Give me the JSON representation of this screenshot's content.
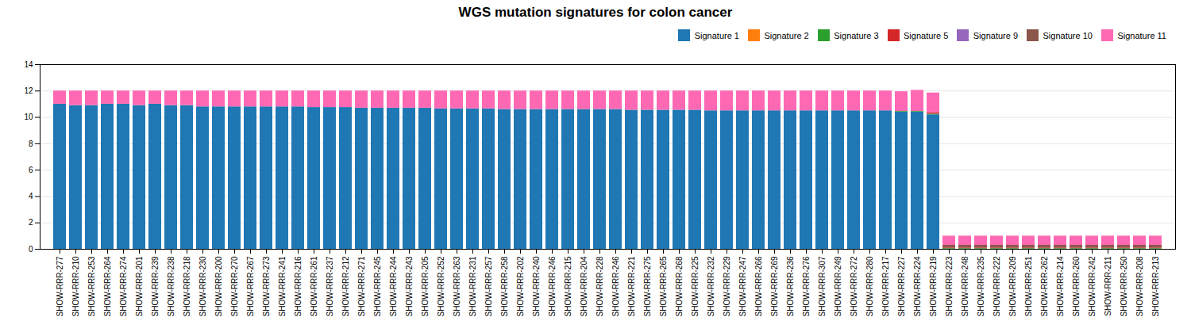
{
  "chart_data": {
    "type": "bar",
    "title": "WGS mutation signatures for colon cancer",
    "stacked": true,
    "categories": [
      "SHOW-RRR-277",
      "SHOW-RRR-210",
      "SHOW-RRR-253",
      "SHOW-RRR-264",
      "SHOW-RRR-274",
      "SHOW-RRR-201",
      "SHOW-RRR-239",
      "SHOW-RRR-238",
      "SHOW-RRR-218",
      "SHOW-RRR-230",
      "SHOW-RRR-200",
      "SHOW-RRR-270",
      "SHOW-RRR-267",
      "SHOW-RRR-273",
      "SHOW-RRR-241",
      "SHOW-RRR-216",
      "SHOW-RRR-261",
      "SHOW-RRR-237",
      "SHOW-RRR-212",
      "SHOW-RRR-271",
      "SHOW-RRR-245",
      "SHOW-RRR-244",
      "SHOW-RRR-243",
      "SHOW-RRR-205",
      "SHOW-RRR-252",
      "SHOW-RRR-263",
      "SHOW-RRR-231",
      "SHOW-RRR-257",
      "SHOW-RRR-258",
      "SHOW-RRR-202",
      "SHOW-RRR-240",
      "SHOW-RRR-246",
      "SHOW-RRR-215",
      "SHOW-RRR-204",
      "SHOW-RRR-228",
      "SHOW-RRR-246",
      "SHOW-RRR-221",
      "SHOW-RRR-275",
      "SHOW-RRR-265",
      "SHOW-RRR-268",
      "SHOW-RRR-225",
      "SHOW-RRR-232",
      "SHOW-RRR-229",
      "SHOW-RRR-247",
      "SHOW-RRR-266",
      "SHOW-RRR-269",
      "SHOW-RRR-236",
      "SHOW-RRR-276",
      "SHOW-RRR-307",
      "SHOW-RRR-249",
      "SHOW-RRR-272",
      "SHOW-RRR-280",
      "SHOW-RRR-217",
      "SHOW-RRR-227",
      "SHOW-RRR-224",
      "SHOW-RRR-219",
      "SHOW-RRR-223",
      "SHOW-RRR-248",
      "SHOW-RRR-235",
      "SHOW-RRR-222",
      "SHOW-RRR-209",
      "SHOW-RRR-251",
      "SHOW-RRR-262",
      "SHOW-RRR-214",
      "SHOW-RRR-260",
      "SHOW-RRR-242",
      "SHOW-RRR-211",
      "SHOW-RRR-250",
      "SHOW-RRR-208",
      "SHOW-RRR-213"
    ],
    "series": [
      {
        "name": "Signature 1",
        "color": "#1f77b4",
        "values": [
          11.0,
          10.9,
          10.9,
          11.0,
          11.0,
          10.9,
          11.0,
          10.9,
          10.9,
          10.8,
          10.8,
          10.8,
          10.8,
          10.8,
          10.8,
          10.8,
          10.75,
          10.75,
          10.75,
          10.7,
          10.7,
          10.7,
          10.7,
          10.7,
          10.65,
          10.65,
          10.65,
          10.65,
          10.6,
          10.6,
          10.6,
          10.6,
          10.6,
          10.6,
          10.6,
          10.6,
          10.55,
          10.55,
          10.55,
          10.55,
          10.55,
          10.5,
          10.5,
          10.5,
          10.5,
          10.5,
          10.5,
          10.5,
          10.5,
          10.5,
          10.5,
          10.5,
          10.5,
          10.4,
          10.4,
          10.2,
          0.0,
          0.0,
          0.0,
          0.0,
          0.0,
          0.0,
          0.0,
          0.0,
          0.0,
          0.0,
          0.0,
          0.0,
          0.0,
          0.0
        ]
      },
      {
        "name": "Signature 2",
        "color": "#ff7f0e",
        "values": [
          0.0,
          0.0,
          0.0,
          0.0,
          0.0,
          0.0,
          0.0,
          0.0,
          0.0,
          0.0,
          0.0,
          0.0,
          0.0,
          0.0,
          0.0,
          0.0,
          0.0,
          0.0,
          0.0,
          0.0,
          0.0,
          0.0,
          0.0,
          0.0,
          0.0,
          0.0,
          0.0,
          0.0,
          0.0,
          0.0,
          0.0,
          0.0,
          0.0,
          0.0,
          0.0,
          0.0,
          0.0,
          0.0,
          0.0,
          0.0,
          0.0,
          0.0,
          0.0,
          0.0,
          0.0,
          0.0,
          0.0,
          0.0,
          0.0,
          0.0,
          0.0,
          0.0,
          0.0,
          0.0,
          0.0,
          0.0,
          0.0,
          0.0,
          0.0,
          0.0,
          0.0,
          0.0,
          0.0,
          0.0,
          0.0,
          0.0,
          0.0,
          0.0,
          0.0,
          0.0
        ]
      },
      {
        "name": "Signature 3",
        "color": "#2ca02c",
        "values": [
          0.0,
          0.0,
          0.0,
          0.0,
          0.0,
          0.0,
          0.0,
          0.0,
          0.0,
          0.0,
          0.0,
          0.0,
          0.0,
          0.0,
          0.0,
          0.0,
          0.0,
          0.0,
          0.0,
          0.0,
          0.0,
          0.0,
          0.0,
          0.0,
          0.0,
          0.0,
          0.0,
          0.0,
          0.0,
          0.0,
          0.0,
          0.0,
          0.0,
          0.0,
          0.0,
          0.0,
          0.0,
          0.0,
          0.0,
          0.0,
          0.0,
          0.0,
          0.0,
          0.0,
          0.0,
          0.0,
          0.0,
          0.0,
          0.0,
          0.0,
          0.0,
          0.0,
          0.0,
          0.05,
          0.05,
          0.05,
          0.05,
          0.05,
          0.05,
          0.05,
          0.05,
          0.05,
          0.05,
          0.05,
          0.05,
          0.05,
          0.05,
          0.05,
          0.05,
          0.05
        ]
      },
      {
        "name": "Signature 5",
        "color": "#d62728",
        "values": [
          0.0,
          0.0,
          0.0,
          0.0,
          0.0,
          0.0,
          0.0,
          0.0,
          0.0,
          0.0,
          0.0,
          0.0,
          0.0,
          0.0,
          0.0,
          0.0,
          0.0,
          0.0,
          0.0,
          0.0,
          0.0,
          0.0,
          0.0,
          0.0,
          0.0,
          0.0,
          0.0,
          0.0,
          0.0,
          0.0,
          0.0,
          0.0,
          0.0,
          0.0,
          0.0,
          0.0,
          0.0,
          0.0,
          0.0,
          0.0,
          0.0,
          0.0,
          0.0,
          0.0,
          0.0,
          0.0,
          0.0,
          0.0,
          0.0,
          0.0,
          0.0,
          0.0,
          0.0,
          0.0,
          0.0,
          0.1,
          0.05,
          0.05,
          0.05,
          0.05,
          0.05,
          0.05,
          0.05,
          0.05,
          0.05,
          0.05,
          0.05,
          0.05,
          0.05,
          0.05
        ]
      },
      {
        "name": "Signature 9",
        "color": "#9467bd",
        "values": [
          0.0,
          0.0,
          0.0,
          0.0,
          0.0,
          0.0,
          0.0,
          0.0,
          0.0,
          0.0,
          0.0,
          0.0,
          0.0,
          0.0,
          0.0,
          0.0,
          0.0,
          0.0,
          0.0,
          0.0,
          0.0,
          0.0,
          0.0,
          0.0,
          0.0,
          0.0,
          0.0,
          0.0,
          0.0,
          0.0,
          0.0,
          0.0,
          0.0,
          0.0,
          0.0,
          0.0,
          0.0,
          0.0,
          0.0,
          0.0,
          0.0,
          0.0,
          0.0,
          0.0,
          0.0,
          0.0,
          0.0,
          0.0,
          0.0,
          0.0,
          0.0,
          0.0,
          0.0,
          0.0,
          0.0,
          0.0,
          0.0,
          0.0,
          0.0,
          0.0,
          0.0,
          0.0,
          0.0,
          0.0,
          0.0,
          0.0,
          0.0,
          0.0,
          0.0,
          0.0
        ]
      },
      {
        "name": "Signature 10",
        "color": "#8c564b",
        "values": [
          0.0,
          0.0,
          0.0,
          0.0,
          0.0,
          0.0,
          0.0,
          0.0,
          0.0,
          0.0,
          0.0,
          0.0,
          0.0,
          0.0,
          0.0,
          0.0,
          0.0,
          0.0,
          0.0,
          0.0,
          0.0,
          0.0,
          0.0,
          0.0,
          0.0,
          0.0,
          0.0,
          0.0,
          0.0,
          0.0,
          0.0,
          0.0,
          0.0,
          0.0,
          0.0,
          0.0,
          0.0,
          0.0,
          0.0,
          0.0,
          0.0,
          0.0,
          0.0,
          0.0,
          0.0,
          0.0,
          0.0,
          0.0,
          0.0,
          0.0,
          0.0,
          0.0,
          0.0,
          0.0,
          0.0,
          0.0,
          0.2,
          0.2,
          0.2,
          0.2,
          0.2,
          0.2,
          0.2,
          0.2,
          0.2,
          0.2,
          0.2,
          0.2,
          0.2,
          0.2
        ]
      },
      {
        "name": "Signature 11",
        "color": "#ff69b4",
        "values": [
          1.0,
          1.1,
          1.1,
          1.0,
          1.0,
          1.1,
          1.0,
          1.1,
          1.1,
          1.2,
          1.2,
          1.2,
          1.2,
          1.2,
          1.2,
          1.2,
          1.25,
          1.25,
          1.25,
          1.3,
          1.3,
          1.3,
          1.3,
          1.3,
          1.35,
          1.35,
          1.35,
          1.35,
          1.4,
          1.4,
          1.4,
          1.4,
          1.4,
          1.4,
          1.4,
          1.4,
          1.45,
          1.45,
          1.45,
          1.45,
          1.45,
          1.5,
          1.5,
          1.5,
          1.5,
          1.5,
          1.5,
          1.5,
          1.5,
          1.5,
          1.5,
          1.5,
          1.5,
          1.5,
          1.6,
          1.5,
          0.7,
          0.7,
          0.7,
          0.7,
          0.7,
          0.7,
          0.7,
          0.7,
          0.7,
          0.7,
          0.7,
          0.7,
          0.7,
          0.7
        ]
      }
    ],
    "ylim": [
      0,
      14
    ],
    "yticks": [
      0,
      2,
      4,
      6,
      8,
      10,
      12,
      14
    ],
    "grid": true,
    "legend": "upper right"
  }
}
